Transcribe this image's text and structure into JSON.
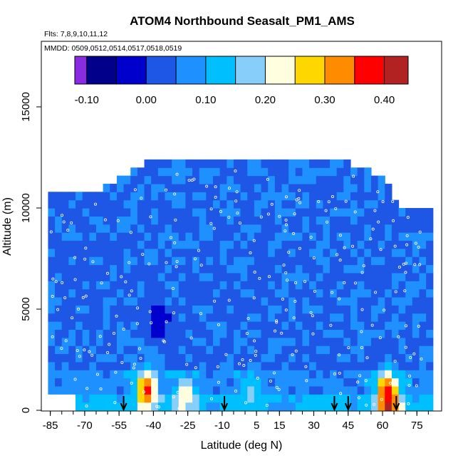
{
  "chart_data": {
    "type": "heatmap",
    "title": "ATOM4 Northbound Seasalt_PM1_AMS",
    "subtitle_flights": "Flts: 7,8,9,10,11,12",
    "subtitle_dates": "MMDD: 0509,0512,0514,0517,0518,0519",
    "xlabel": "Latitude (deg N)",
    "ylabel": "Altitude (m)",
    "xlim": [
      -88,
      83
    ],
    "ylim": [
      0,
      17500
    ],
    "x_ticks": [
      -85,
      -70,
      -55,
      -40,
      -25,
      -10,
      5,
      15,
      30,
      45,
      60,
      75
    ],
    "y_ticks": [
      0,
      5000,
      10000,
      15000
    ],
    "colorbar": {
      "range": [
        -0.12,
        0.44
      ],
      "ticks": [
        -0.1,
        0.0,
        0.1,
        0.2,
        0.3,
        0.4
      ],
      "tick_labels": [
        "-0.10",
        "0.00",
        "0.10",
        "0.20",
        "0.30",
        "0.40"
      ],
      "boundaries": [
        -0.12,
        -0.1,
        -0.05,
        0.0,
        0.05,
        0.1,
        0.15,
        0.2,
        0.25,
        0.3,
        0.35,
        0.4,
        0.44
      ],
      "colors": [
        "#8a2be2",
        "#00008b",
        "#0000cd",
        "#1e56e6",
        "#1e90ff",
        "#00bfff",
        "#87cefa",
        "#ffffe0",
        "#ffd700",
        "#ff8c00",
        "#ff0000",
        "#b22222"
      ]
    },
    "background_value": 0.04,
    "hotspots": [
      {
        "lat": -43.0,
        "alt": 1000,
        "value": 0.38
      },
      {
        "lat": -26.0,
        "alt": 700,
        "value": 0.25
      },
      {
        "lat": 62.0,
        "alt": 1100,
        "value": 0.33
      },
      {
        "lat": 63.0,
        "alt": 200,
        "value": 0.42
      },
      {
        "lat": 2.0,
        "alt": 900,
        "value": 0.16
      },
      {
        "lat": -38.0,
        "alt": 4500,
        "value": -0.06
      }
    ],
    "profile_arrow_latitudes": [
      -53,
      -9,
      39,
      45,
      66
    ],
    "envelope": [
      [
        -86,
        10400
      ],
      [
        -75,
        10500
      ],
      [
        -62,
        10700
      ],
      [
        -55,
        11200
      ],
      [
        -48,
        11800
      ],
      [
        -40,
        12100
      ],
      [
        -20,
        12200
      ],
      [
        0,
        12100
      ],
      [
        20,
        12100
      ],
      [
        32,
        12200
      ],
      [
        40,
        12200
      ],
      [
        50,
        11800
      ],
      [
        57,
        11500
      ],
      [
        63,
        10800
      ],
      [
        68,
        10000
      ],
      [
        75,
        9700
      ],
      [
        81,
        9600
      ]
    ],
    "color_key": "#ff0000"
  }
}
